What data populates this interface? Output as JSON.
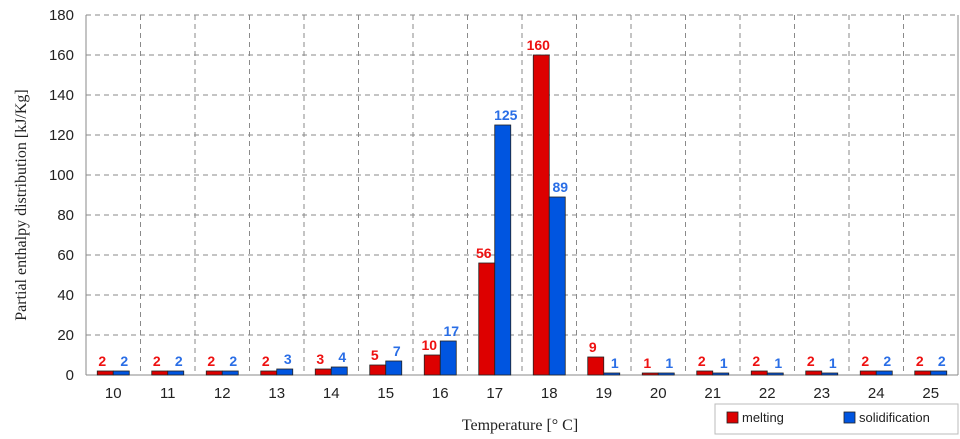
{
  "chart_data": {
    "type": "bar",
    "xlabel": "Temperature [° C]",
    "ylabel": "Partial enthalpy distribution [kJ/Kg]",
    "categories": [
      "10",
      "11",
      "12",
      "13",
      "14",
      "15",
      "16",
      "17",
      "18",
      "19",
      "20",
      "21",
      "22",
      "23",
      "24",
      "25"
    ],
    "series": [
      {
        "name": "melting",
        "color": "#dd0000",
        "label_color": "#ee1111",
        "values": [
          2,
          2,
          2,
          2,
          3,
          5,
          10,
          56,
          160,
          9,
          1,
          2,
          2,
          2,
          2,
          2
        ]
      },
      {
        "name": "solidification",
        "color": "#0055e0",
        "label_color": "#2a6ee6",
        "values": [
          2,
          2,
          2,
          3,
          4,
          7,
          17,
          125,
          89,
          1,
          1,
          1,
          1,
          1,
          2,
          2
        ]
      }
    ],
    "ylim": [
      0,
      180
    ],
    "yticks": [
      0,
      20,
      40,
      60,
      80,
      100,
      120,
      140,
      160,
      180
    ],
    "grid": true,
    "grid_style": "dashed",
    "legend_position": "bottom-right",
    "bar_outline_color": "#222222",
    "grid_color": "#8a8a8a"
  }
}
